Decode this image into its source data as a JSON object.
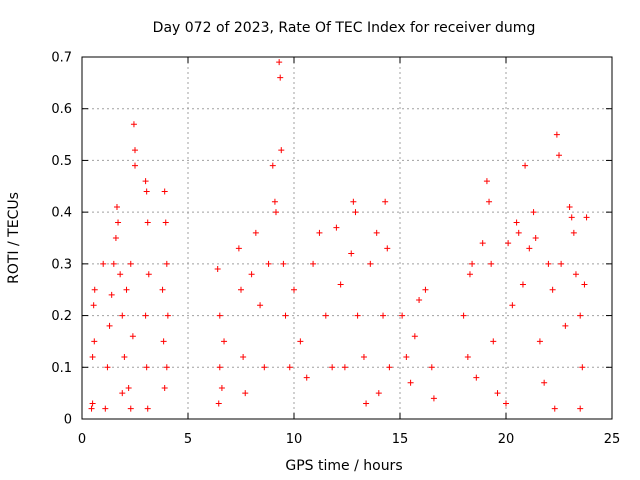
{
  "chart_data": {
    "type": "scatter",
    "title": "Day 072 of 2023, Rate Of TEC Index for receiver dumg",
    "xlabel": "GPS time / hours",
    "ylabel": "ROTI / TECUs",
    "xlim": [
      0,
      25
    ],
    "ylim": [
      0,
      0.7
    ],
    "x_ticks": [
      "0",
      "5",
      "10",
      "15",
      "20",
      "25"
    ],
    "y_ticks": [
      "0",
      "0.1",
      "0.2",
      "0.3",
      "0.4",
      "0.5",
      "0.6",
      "0.7"
    ],
    "grid": true,
    "legend": "none",
    "marker": "plus",
    "color": "#ff0000",
    "x_tick_values": [
      0,
      5,
      10,
      15,
      20,
      25
    ],
    "y_tick_values": [
      0,
      0.1,
      0.2,
      0.3,
      0.4,
      0.5,
      0.6,
      0.7
    ],
    "series": [
      {
        "points": [
          [
            0.45,
            0.02
          ],
          [
            0.5,
            0.12
          ],
          [
            0.55,
            0.22
          ],
          [
            0.6,
            0.25
          ],
          [
            0.5,
            0.03
          ],
          [
            0.58,
            0.15
          ],
          [
            1.0,
            0.3
          ],
          [
            1.1,
            0.02
          ],
          [
            1.2,
            0.1
          ],
          [
            1.3,
            0.18
          ],
          [
            1.4,
            0.24
          ],
          [
            1.5,
            0.3
          ],
          [
            1.6,
            0.35
          ],
          [
            1.65,
            0.41
          ],
          [
            1.7,
            0.38
          ],
          [
            1.8,
            0.28
          ],
          [
            1.9,
            0.2
          ],
          [
            2.0,
            0.12
          ],
          [
            2.1,
            0.25
          ],
          [
            2.2,
            0.06
          ],
          [
            2.3,
            0.3
          ],
          [
            2.4,
            0.16
          ],
          [
            2.45,
            0.57
          ],
          [
            2.5,
            0.52
          ],
          [
            2.5,
            0.49
          ],
          [
            2.3,
            0.02
          ],
          [
            1.9,
            0.05
          ],
          [
            3.0,
            0.46
          ],
          [
            3.05,
            0.44
          ],
          [
            3.1,
            0.38
          ],
          [
            3.0,
            0.2
          ],
          [
            3.05,
            0.1
          ],
          [
            3.1,
            0.02
          ],
          [
            3.15,
            0.28
          ],
          [
            3.9,
            0.44
          ],
          [
            3.95,
            0.38
          ],
          [
            3.8,
            0.25
          ],
          [
            3.85,
            0.15
          ],
          [
            3.9,
            0.06
          ],
          [
            4.0,
            0.3
          ],
          [
            4.05,
            0.2
          ],
          [
            4.0,
            0.1
          ],
          [
            6.4,
            0.29
          ],
          [
            6.5,
            0.2
          ],
          [
            6.5,
            0.1
          ],
          [
            6.6,
            0.06
          ],
          [
            6.7,
            0.15
          ],
          [
            6.45,
            0.03
          ],
          [
            7.4,
            0.33
          ],
          [
            7.5,
            0.25
          ],
          [
            7.6,
            0.12
          ],
          [
            7.7,
            0.05
          ],
          [
            8.0,
            0.28
          ],
          [
            8.2,
            0.36
          ],
          [
            8.4,
            0.22
          ],
          [
            8.6,
            0.1
          ],
          [
            8.8,
            0.3
          ],
          [
            9.0,
            0.49
          ],
          [
            9.1,
            0.42
          ],
          [
            9.15,
            0.4
          ],
          [
            9.3,
            0.69
          ],
          [
            9.35,
            0.66
          ],
          [
            9.4,
            0.52
          ],
          [
            9.5,
            0.3
          ],
          [
            9.6,
            0.2
          ],
          [
            9.8,
            0.1
          ],
          [
            10.0,
            0.25
          ],
          [
            10.3,
            0.15
          ],
          [
            10.6,
            0.08
          ],
          [
            10.9,
            0.3
          ],
          [
            11.2,
            0.36
          ],
          [
            11.5,
            0.2
          ],
          [
            11.8,
            0.1
          ],
          [
            12.0,
            0.37
          ],
          [
            12.2,
            0.26
          ],
          [
            12.4,
            0.1
          ],
          [
            12.7,
            0.32
          ],
          [
            12.8,
            0.42
          ],
          [
            12.9,
            0.4
          ],
          [
            13.0,
            0.2
          ],
          [
            13.3,
            0.12
          ],
          [
            13.6,
            0.3
          ],
          [
            13.9,
            0.36
          ],
          [
            14.2,
            0.2
          ],
          [
            14.3,
            0.42
          ],
          [
            14.4,
            0.33
          ],
          [
            14.5,
            0.1
          ],
          [
            14.0,
            0.05
          ],
          [
            13.4,
            0.03
          ],
          [
            15.1,
            0.2
          ],
          [
            15.3,
            0.12
          ],
          [
            15.5,
            0.07
          ],
          [
            15.7,
            0.16
          ],
          [
            15.9,
            0.23
          ],
          [
            16.2,
            0.25
          ],
          [
            16.5,
            0.1
          ],
          [
            16.6,
            0.04
          ],
          [
            18.0,
            0.2
          ],
          [
            18.2,
            0.12
          ],
          [
            18.3,
            0.28
          ],
          [
            18.4,
            0.3
          ],
          [
            18.6,
            0.08
          ],
          [
            18.9,
            0.34
          ],
          [
            19.1,
            0.46
          ],
          [
            19.2,
            0.42
          ],
          [
            19.3,
            0.3
          ],
          [
            19.4,
            0.15
          ],
          [
            19.6,
            0.05
          ],
          [
            20.1,
            0.34
          ],
          [
            20.3,
            0.22
          ],
          [
            20.5,
            0.38
          ],
          [
            20.6,
            0.36
          ],
          [
            20.8,
            0.26
          ],
          [
            20.9,
            0.49
          ],
          [
            21.1,
            0.33
          ],
          [
            21.3,
            0.4
          ],
          [
            21.4,
            0.35
          ],
          [
            21.6,
            0.15
          ],
          [
            21.8,
            0.07
          ],
          [
            22.0,
            0.3
          ],
          [
            22.2,
            0.25
          ],
          [
            22.4,
            0.55
          ],
          [
            22.5,
            0.51
          ],
          [
            22.6,
            0.3
          ],
          [
            22.8,
            0.18
          ],
          [
            23.0,
            0.41
          ],
          [
            23.1,
            0.39
          ],
          [
            23.2,
            0.36
          ],
          [
            23.3,
            0.28
          ],
          [
            23.5,
            0.2
          ],
          [
            23.6,
            0.1
          ],
          [
            23.7,
            0.26
          ],
          [
            23.8,
            0.39
          ],
          [
            23.5,
            0.02
          ],
          [
            22.3,
            0.02
          ],
          [
            20.0,
            0.03
          ]
        ]
      }
    ]
  }
}
